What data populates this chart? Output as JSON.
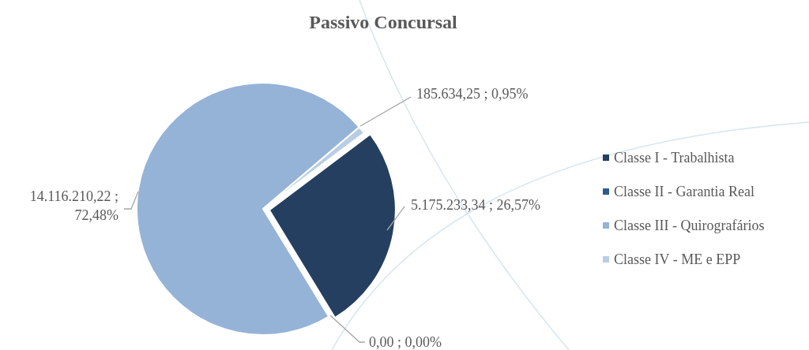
{
  "chart_data": {
    "type": "pie",
    "title": "Passivo Concursal",
    "categories": [
      "Classe I - Trabalhista",
      "Classe II - Garantia Real",
      "Classe III - Quirografários",
      "Classe IV - ME e EPP"
    ],
    "values": [
      5175233.34,
      0,
      14116210.22,
      185634.25
    ],
    "colors": [
      "#243f60",
      "#2e5c8a",
      "#95b3d7",
      "#b9cde5"
    ],
    "value_labels": [
      "5.175.233,34 ; 26,57%",
      "0,00 ; 0,00%",
      "14.116.210,22 ; 72,48%",
      "185.634,25 ; 0,95%"
    ],
    "legend": "right"
  }
}
